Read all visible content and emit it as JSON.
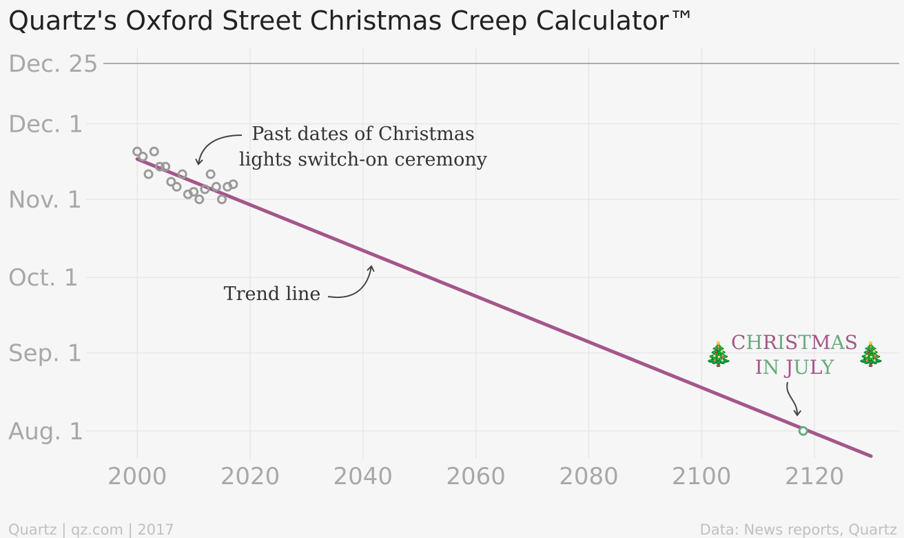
{
  "chart_data": {
    "type": "scatter",
    "title": "Quartz's Oxford Street Christmas Creep Calculator™",
    "x_ticks": [
      2000,
      2020,
      2040,
      2060,
      2080,
      2100,
      2120
    ],
    "xlim": [
      1994,
      2135
    ],
    "y_ticks": [
      "2000-08-01",
      "2000-09-01",
      "2000-10-01",
      "2000-11-01",
      "2000-12-01",
      "2000-12-25"
    ],
    "y_tick_labels": [
      "Aug. 1",
      "Sep. 1",
      "Oct. 1",
      "Nov. 1",
      "Dec. 1",
      "Dec. 25"
    ],
    "ylim": [
      "2000-07-21",
      "2000-12-31"
    ],
    "xlabel": "",
    "ylabel": "",
    "series": [
      {
        "marker": "hollow-circle",
        "color": "#9a9a9a",
        "points": [
          {
            "x": 2000,
            "y": "2000-11-20"
          },
          {
            "x": 2001,
            "y": "2000-11-18"
          },
          {
            "x": 2002,
            "y": "2000-11-11"
          },
          {
            "x": 2003,
            "y": "2000-11-20"
          },
          {
            "x": 2004,
            "y": "2000-11-14"
          },
          {
            "x": 2005,
            "y": "2000-11-14"
          },
          {
            "x": 2006,
            "y": "2000-11-08"
          },
          {
            "x": 2007,
            "y": "2000-11-06"
          },
          {
            "x": 2008,
            "y": "2000-11-11"
          },
          {
            "x": 2009,
            "y": "2000-11-03"
          },
          {
            "x": 2010,
            "y": "2000-11-04"
          },
          {
            "x": 2011,
            "y": "2000-11-01"
          },
          {
            "x": 2012,
            "y": "2000-11-05"
          },
          {
            "x": 2013,
            "y": "2000-11-11"
          },
          {
            "x": 2014,
            "y": "2000-11-06"
          },
          {
            "x": 2015,
            "y": "2000-11-01"
          },
          {
            "x": 2016,
            "y": "2000-11-06"
          },
          {
            "x": 2017,
            "y": "2000-11-07"
          }
        ]
      },
      {
        "type": "line",
        "color": "#a4568a",
        "points": [
          {
            "x": 2000,
            "y": "2000-11-17"
          },
          {
            "x": 2130,
            "y": "2000-07-22"
          }
        ]
      },
      {
        "marker": "hollow-circle",
        "color": "#6aaa80",
        "points": [
          {
            "x": 2118,
            "y": "2000-08-01"
          }
        ]
      }
    ],
    "reference_line": {
      "y": "2000-12-25",
      "color": "#9a9a9a"
    },
    "annotations": {
      "past_dates": [
        "Past dates of Christmas",
        "lights switch-on ceremony"
      ],
      "trend_line": "Trend line",
      "christmas_in_july": [
        "CHRISTMAS",
        "IN JULY"
      ],
      "tree_icon": "🎄"
    },
    "colors": {
      "purple": "#a4568a",
      "green": "#6aaa80",
      "gray": "#9a9a9a"
    },
    "grid": true
  },
  "footer": {
    "left": "Quartz | qz.com | 2017",
    "right": "Data: News reports, Quartz"
  }
}
